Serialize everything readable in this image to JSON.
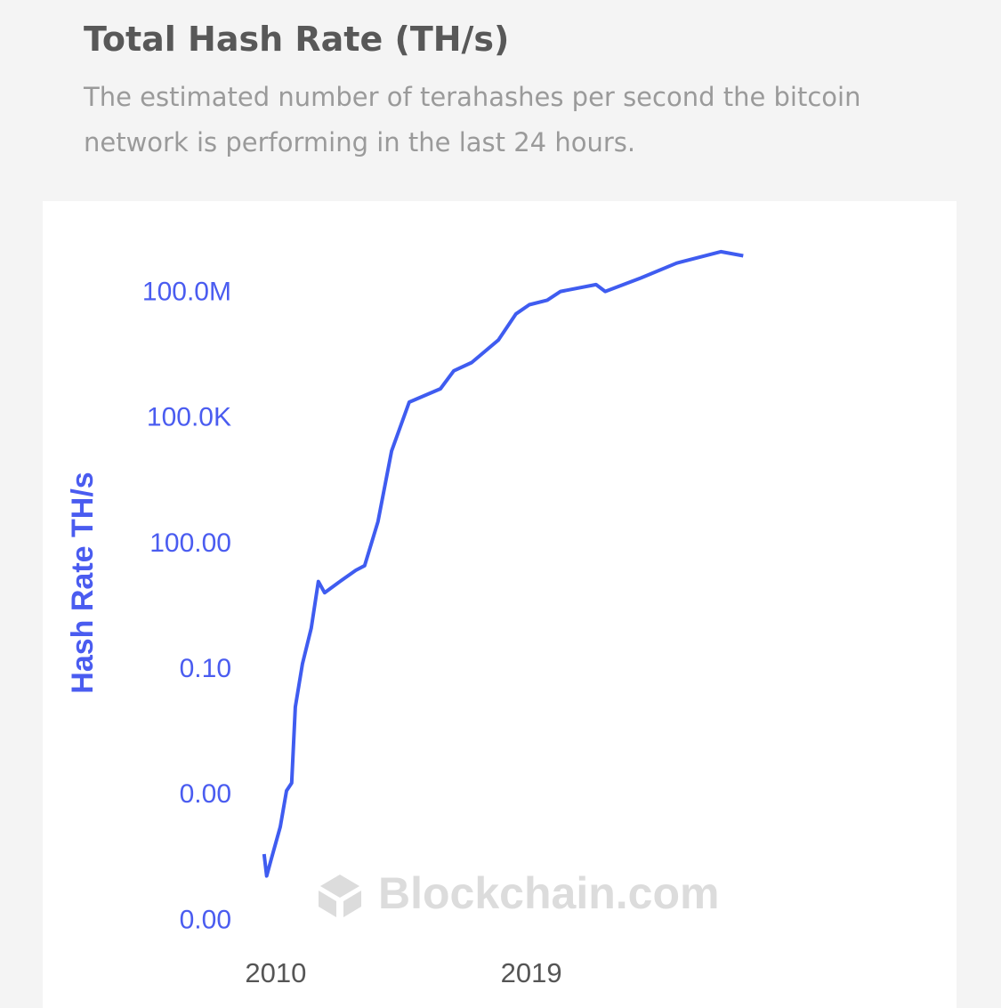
{
  "chart_data": {
    "type": "line",
    "title": "Total Hash Rate (TH/s)",
    "subtitle": "The estimated number of terahashes per second the bitcoin network is performing in the last 24 hours.",
    "y_label": "Hash Rate TH/s",
    "watermark": "Blockchain.com",
    "log_y": true,
    "color": "#3f5cf0",
    "x": [
      2009.59,
      2009.68,
      2009.84,
      2010.16,
      2010.38,
      2010.56,
      2010.69,
      2010.94,
      2011.25,
      2011.5,
      2011.72,
      2012.19,
      2012.82,
      2013.13,
      2013.6,
      2014.08,
      2014.7,
      2015.8,
      2016.27,
      2016.9,
      2017.84,
      2018.46,
      2018.93,
      2019.56,
      2020.03,
      2021.28,
      2021.6,
      2022.85,
      2024.11,
      2025.67,
      2026.46
    ],
    "values": [
      4e-06,
      1.2e-06,
      3e-06,
      1.8e-05,
      0.00013,
      0.0002,
      0.013,
      0.14,
      1,
      13,
      7,
      12,
      24,
      31,
      350,
      17000,
      250000,
      520000,
      1400000,
      2200000,
      7600000,
      32000000,
      53000000,
      68000000,
      110000000,
      160000000,
      110000000,
      230000000,
      520000000,
      980000000,
      780000000
    ],
    "xlim": [
      2008.75,
      2033.5
    ],
    "xticks": [
      2010,
      2019
    ],
    "ylim": [
      3e-08,
      3000000000
    ],
    "yticks": [
      {
        "value": 1e-07,
        "label": "0.00"
      },
      {
        "value": 0.0001,
        "label": "0.00"
      },
      {
        "value": 0.1,
        "label": "0.10"
      },
      {
        "value": 100,
        "label": "100.00"
      },
      {
        "value": 100000,
        "label": "100.0K"
      },
      {
        "value": 100000000,
        "label": "100.0M"
      }
    ]
  }
}
